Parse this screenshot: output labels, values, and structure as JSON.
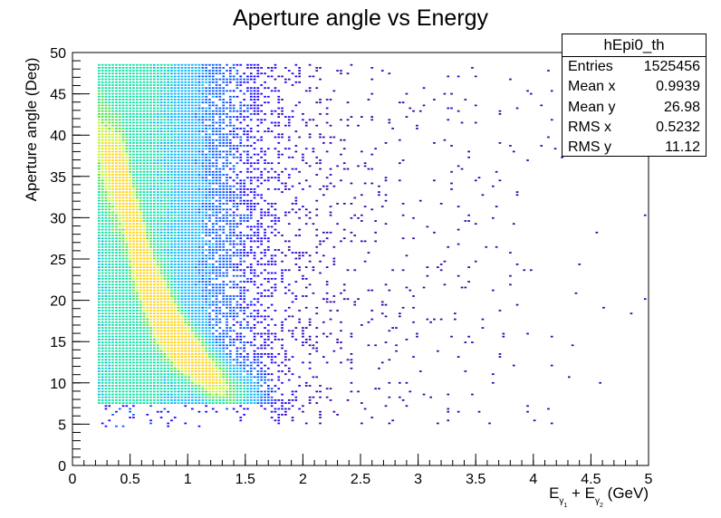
{
  "chart_data": {
    "type": "heatmap",
    "title": "Aperture angle vs Energy",
    "ylabel": "Aperture angle (Deg)",
    "xlabel": {
      "parts": [
        "E",
        "γ",
        "1",
        " + E",
        "γ",
        "2",
        " (GeV)"
      ]
    },
    "xlim": [
      0,
      5
    ],
    "ylim": [
      0,
      50
    ],
    "x_ticks": [
      "0",
      "0.5",
      "1",
      "1.5",
      "2",
      "2.5",
      "3",
      "3.5",
      "4",
      "4.5",
      "5"
    ],
    "y_ticks": [
      "0",
      "5",
      "10",
      "15",
      "20",
      "25",
      "30",
      "35",
      "40",
      "45",
      "50"
    ],
    "density_ridge": {
      "description_x": [
        0.45,
        0.5,
        0.6,
        0.7,
        0.8,
        0.9,
        1.0,
        1.1,
        1.2,
        1.3,
        1.4
      ],
      "y": [
        33,
        29,
        24,
        20,
        17.5,
        15,
        13.5,
        12,
        10.5,
        9.5,
        8.5
      ]
    },
    "data_region": {
      "x": [
        0.22,
        5.0
      ],
      "y": [
        4.5,
        48.3
      ]
    },
    "colormap": [
      "#3300aa",
      "#1a00ff",
      "#0055ff",
      "#00b0ff",
      "#00e0a0",
      "#40e040",
      "#c0f020",
      "#ffd000"
    ],
    "stats": {
      "name": "hEpi0_th",
      "rows": [
        {
          "label": "Entries",
          "value": "1525456"
        },
        {
          "label": "Mean x",
          "value": "0.9939"
        },
        {
          "label": "Mean y",
          "value": "26.98"
        },
        {
          "label": "RMS x",
          "value": "0.5232"
        },
        {
          "label": "RMS y",
          "value": "11.12"
        }
      ]
    },
    "grid": false,
    "legend": "none"
  }
}
